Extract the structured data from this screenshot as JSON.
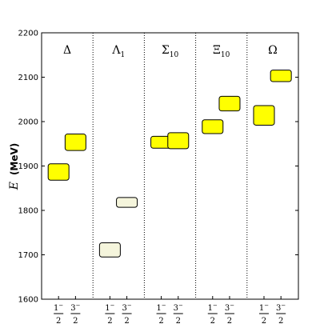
{
  "chart_data": {
    "type": "bar",
    "ylabel_math": "E",
    "ylabel_unit": "(MeV)",
    "ylim": [
      1600,
      2200
    ],
    "yticks": [
      "1600",
      "1700",
      "1800",
      "1900",
      "2000",
      "2100",
      "2200"
    ],
    "grid": false,
    "groups": [
      {
        "label": "Δ",
        "sub": ""
      },
      {
        "label": "Λ",
        "sub": "1"
      },
      {
        "label": "Σ",
        "sub": "10"
      },
      {
        "label": "Ξ",
        "sub": "10"
      },
      {
        "label": "Ω",
        "sub": ""
      }
    ],
    "xtick_fraction": {
      "num_half": "1",
      "num_three_half": "3",
      "sup": "−",
      "den": "2"
    },
    "states": [
      {
        "group": 0,
        "spin": "1/2",
        "min": 1868,
        "max": 1905,
        "color": "#ffff00"
      },
      {
        "group": 0,
        "spin": "3/2",
        "min": 1935,
        "max": 1972,
        "color": "#ffff00"
      },
      {
        "group": 1,
        "spin": "1/2",
        "min": 1695,
        "max": 1727,
        "color": "#f5f5dc"
      },
      {
        "group": 1,
        "spin": "3/2",
        "min": 1807,
        "max": 1829,
        "color": "#f5f5dc"
      },
      {
        "group": 2,
        "spin": "1/2",
        "min": 1940,
        "max": 1967,
        "color": "#ffff00"
      },
      {
        "group": 2,
        "spin": "3/2",
        "min": 1939,
        "max": 1975,
        "color": "#ffff00"
      },
      {
        "group": 3,
        "spin": "1/2",
        "min": 1973,
        "max": 2004,
        "color": "#ffff00"
      },
      {
        "group": 3,
        "spin": "3/2",
        "min": 2024,
        "max": 2057,
        "color": "#ffff00"
      },
      {
        "group": 4,
        "spin": "1/2",
        "min": 1992,
        "max": 2036,
        "color": "#ffff00"
      },
      {
        "group": 4,
        "spin": "3/2",
        "min": 2090,
        "max": 2116,
        "color": "#ffff00"
      }
    ]
  }
}
